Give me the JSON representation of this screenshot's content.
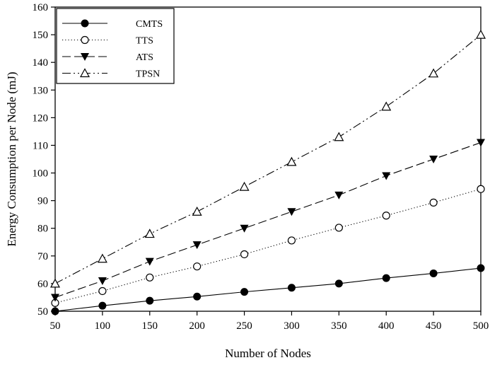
{
  "chart_data": {
    "type": "line",
    "title": "",
    "xlabel": "Number of  Nodes",
    "ylabel": "Energy Consumption per Node (mJ)",
    "xlim": [
      50,
      500
    ],
    "ylim": [
      50,
      160
    ],
    "x": [
      50,
      100,
      150,
      200,
      250,
      300,
      350,
      400,
      450,
      500
    ],
    "xticks": [
      50,
      100,
      150,
      200,
      250,
      300,
      350,
      400,
      450,
      500
    ],
    "yticks": [
      50,
      60,
      70,
      80,
      90,
      100,
      110,
      120,
      130,
      140,
      150,
      160
    ],
    "grid": false,
    "legend_position": "top-left",
    "series": [
      {
        "name": "CMTS",
        "marker": "filled-circle",
        "line": "solid",
        "values": [
          50,
          52,
          53.8,
          55.3,
          57,
          58.5,
          60,
          62,
          63.7,
          65.6
        ]
      },
      {
        "name": "TTS",
        "marker": "open-circle",
        "line": "dotted",
        "values": [
          53,
          57.3,
          62.2,
          66.2,
          70.6,
          75.6,
          80.2,
          84.6,
          89.3,
          94.2
        ]
      },
      {
        "name": "ATS",
        "marker": "filled-triangle-down",
        "line": "dashed",
        "values": [
          55,
          61,
          68,
          74,
          80,
          86,
          92,
          99,
          105,
          111
        ]
      },
      {
        "name": "TPSN",
        "marker": "open-triangle-up",
        "line": "dash-dot-dot",
        "values": [
          60,
          69,
          78,
          86,
          95,
          104,
          113,
          124,
          136,
          150
        ]
      }
    ]
  }
}
